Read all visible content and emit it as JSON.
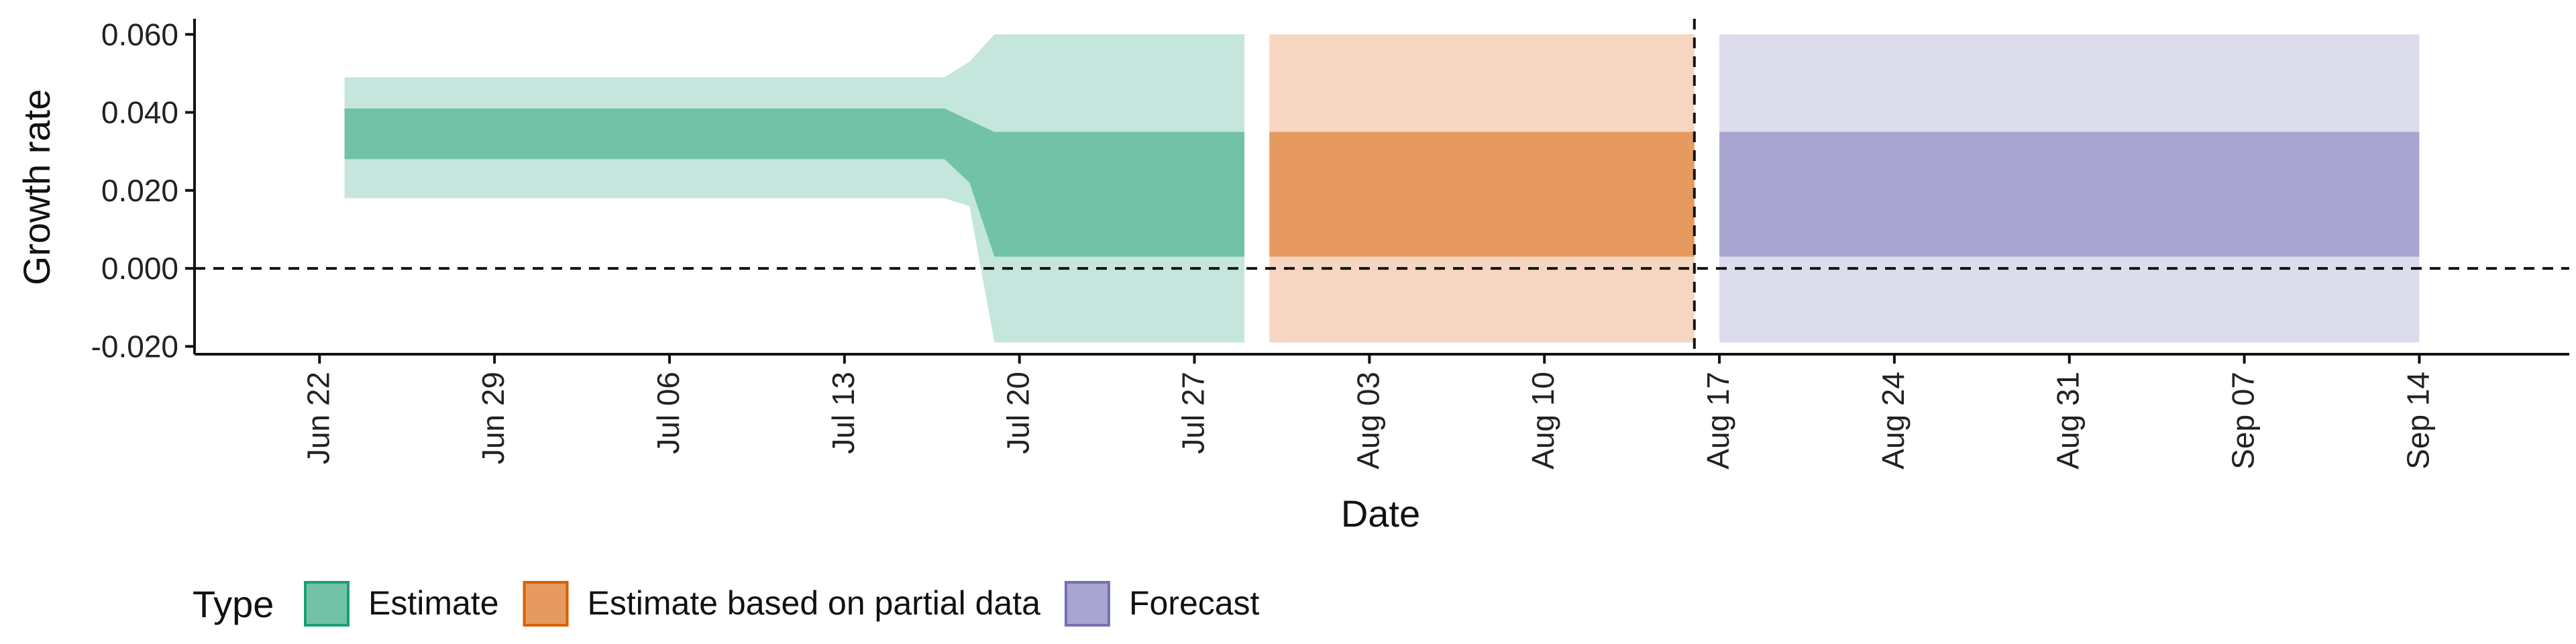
{
  "chart_data": {
    "type": "area",
    "xlabel": "Date",
    "ylabel": "Growth rate",
    "x_axis_type": "date",
    "xlim": [
      "2020-06-17",
      "2020-09-20"
    ],
    "ylim": [
      -0.022,
      0.064
    ],
    "x_ticks": [
      {
        "date": "2020-06-22",
        "label": "Jun 22"
      },
      {
        "date": "2020-06-29",
        "label": "Jun 29"
      },
      {
        "date": "2020-07-06",
        "label": "Jul 06"
      },
      {
        "date": "2020-07-13",
        "label": "Jul 13"
      },
      {
        "date": "2020-07-20",
        "label": "Jul 20"
      },
      {
        "date": "2020-07-27",
        "label": "Jul 27"
      },
      {
        "date": "2020-08-03",
        "label": "Aug 03"
      },
      {
        "date": "2020-08-10",
        "label": "Aug 10"
      },
      {
        "date": "2020-08-17",
        "label": "Aug 17"
      },
      {
        "date": "2020-08-24",
        "label": "Aug 24"
      },
      {
        "date": "2020-08-31",
        "label": "Aug 31"
      },
      {
        "date": "2020-09-07",
        "label": "Sep 07"
      },
      {
        "date": "2020-09-14",
        "label": "Sep 14"
      }
    ],
    "y_ticks": [
      {
        "value": -0.02,
        "label": "-0.020"
      },
      {
        "value": 0.0,
        "label": "0.000"
      },
      {
        "value": 0.02,
        "label": "0.020"
      },
      {
        "value": 0.04,
        "label": "0.040"
      },
      {
        "value": 0.06,
        "label": "0.060"
      }
    ],
    "grid": false,
    "reference_lines": [
      {
        "axis": "y",
        "value": 0.0,
        "style": "dashed"
      },
      {
        "axis": "x",
        "value": "2020-08-16",
        "style": "dashed"
      }
    ],
    "legend": {
      "title": "Type",
      "position": "bottom-left",
      "entries": [
        "Estimate",
        "Estimate based on partial data",
        "Forecast"
      ]
    },
    "series": [
      {
        "name": "Estimate",
        "fill_color": "#72c2a8",
        "outer_color": "#c4e6dc",
        "key_color": "#1b9e77",
        "points": [
          {
            "x": "2020-06-23",
            "lower_90": 0.018,
            "lower_50": 0.028,
            "upper_50": 0.041,
            "upper_90": 0.049
          },
          {
            "x": "2020-07-17",
            "lower_90": 0.018,
            "lower_50": 0.028,
            "upper_50": 0.041,
            "upper_90": 0.049
          },
          {
            "x": "2020-07-18",
            "lower_90": 0.016,
            "lower_50": 0.022,
            "upper_50": 0.038,
            "upper_90": 0.053
          },
          {
            "x": "2020-07-19",
            "lower_90": -0.019,
            "lower_50": 0.003,
            "upper_50": 0.035,
            "upper_90": 0.06
          },
          {
            "x": "2020-07-29",
            "lower_90": -0.019,
            "lower_50": 0.003,
            "upper_50": 0.035,
            "upper_90": 0.06
          }
        ]
      },
      {
        "name": "Estimate based on partial data",
        "fill_color": "#e69a5f",
        "outer_color": "#f6d6c0",
        "key_color": "#d95f02",
        "points": [
          {
            "x": "2020-07-30",
            "lower_90": -0.019,
            "lower_50": 0.003,
            "upper_50": 0.035,
            "upper_90": 0.06
          },
          {
            "x": "2020-08-16",
            "lower_90": -0.019,
            "lower_50": 0.003,
            "upper_50": 0.035,
            "upper_90": 0.06
          }
        ]
      },
      {
        "name": "Forecast",
        "fill_color": "#a8a6d0",
        "outer_color": "#dddcec",
        "key_color": "#7570b3",
        "points": [
          {
            "x": "2020-08-17",
            "lower_90": -0.019,
            "lower_50": 0.003,
            "upper_50": 0.035,
            "upper_90": 0.06
          },
          {
            "x": "2020-09-14",
            "lower_90": -0.019,
            "lower_50": 0.003,
            "upper_50": 0.035,
            "upper_90": 0.06
          }
        ]
      }
    ]
  }
}
